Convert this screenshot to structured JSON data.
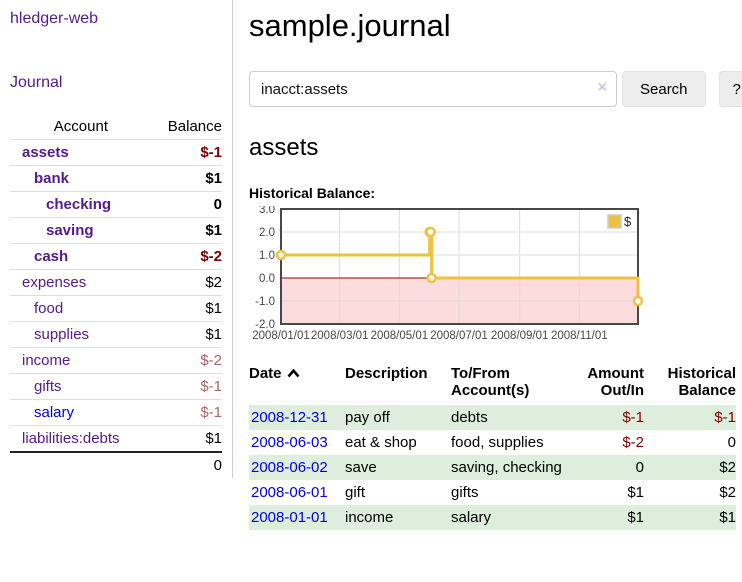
{
  "sidebar": {
    "app_title": "hledger-web",
    "journal_link": "Journal",
    "accounts_table": {
      "headers": {
        "account": "Account",
        "balance": "Balance"
      },
      "accounts": [
        {
          "name": "assets",
          "balance": "$-1",
          "depth": 0,
          "bold": true
        },
        {
          "name": "bank",
          "balance": "$1",
          "depth": 1,
          "bold": true
        },
        {
          "name": "checking",
          "balance": "0",
          "depth": 2,
          "bold": true
        },
        {
          "name": "saving",
          "balance": "$1",
          "depth": 2,
          "bold": true
        },
        {
          "name": "cash",
          "balance": "$-2",
          "depth": 1,
          "bold": true
        },
        {
          "name": "expenses",
          "balance": "$2",
          "depth": 0,
          "bold": false
        },
        {
          "name": "food",
          "balance": "$1",
          "depth": 1,
          "bold": false
        },
        {
          "name": "supplies",
          "balance": "$1",
          "depth": 1,
          "bold": false
        },
        {
          "name": "income",
          "balance": "$-2",
          "depth": 0,
          "bold": false
        },
        {
          "name": "gifts",
          "balance": "$-1",
          "depth": 1,
          "bold": false
        },
        {
          "name": "salary",
          "balance": "$-1",
          "depth": 1,
          "bold": false,
          "link_color": "blue"
        },
        {
          "name": "liabilities:debts",
          "balance": "$1",
          "depth": 0,
          "bold": false
        }
      ],
      "total": "0"
    }
  },
  "main": {
    "title": "sample.journal",
    "search": {
      "query": "inacct:assets",
      "clear_icon": "×",
      "search_button": "Search",
      "help_button": "?"
    },
    "account_heading": "assets",
    "chart_label": "Historical Balance:",
    "register": {
      "headers": {
        "date": "Date",
        "description": "Description",
        "accounts": "To/From Account(s)",
        "amount": "Amount Out/In",
        "balance": "Historical Balance"
      },
      "rows": [
        {
          "date": "2008-12-31",
          "description": "pay off",
          "accounts": "debts",
          "amount": "$-1",
          "balance": "$-1"
        },
        {
          "date": "2008-06-03",
          "description": "eat & shop",
          "accounts": "food, supplies",
          "amount": "$-2",
          "balance": "0"
        },
        {
          "date": "2008-06-02",
          "description": "save",
          "accounts": "saving, checking",
          "amount": "0",
          "balance": "$2"
        },
        {
          "date": "2008-06-01",
          "description": "gift",
          "accounts": "gifts",
          "amount": "$1",
          "balance": "$2"
        },
        {
          "date": "2008-01-01",
          "description": "income",
          "accounts": "salary",
          "amount": "$1",
          "balance": "$1"
        }
      ]
    }
  },
  "chart_data": {
    "type": "line",
    "step": true,
    "title": "Historical Balance:",
    "xlim": [
      "2008-01-01",
      "2008-12-31"
    ],
    "ylim": [
      -2,
      3
    ],
    "x_ticks": [
      "2008/01/01",
      "2008/03/01",
      "2008/05/01",
      "2008/07/01",
      "2008/09/01",
      "2008/11/01"
    ],
    "y_ticks": [
      3.0,
      2.0,
      1.0,
      0.0,
      -1.0,
      -2.0
    ],
    "grid": true,
    "legend": {
      "label": "$",
      "position": "top-right"
    },
    "series": [
      {
        "name": "$",
        "color": "#edc240",
        "points": [
          [
            "2008-01-01",
            1
          ],
          [
            "2008-06-01",
            2
          ],
          [
            "2008-06-02",
            2
          ],
          [
            "2008-06-03",
            0
          ],
          [
            "2008-12-31",
            -1
          ]
        ]
      }
    ],
    "negative_region_color": "#fcdcdc",
    "zero_line_color": "#990000",
    "grid_color": "#dddddd",
    "border_color": "#474747",
    "tick_label_color": "#474747"
  },
  "colors": {
    "link_purple": "#551a8b",
    "link_blue": "#0000e0",
    "negative_bold_red": "#7a0000",
    "negative_muted_red": "#b06363",
    "row_stripe_green": "#ddeedd",
    "series_gold": "#edc240",
    "button_gray": "#ededed"
  },
  "icons": {
    "clear_search": "×",
    "sort_ascending": "chevron-up"
  }
}
